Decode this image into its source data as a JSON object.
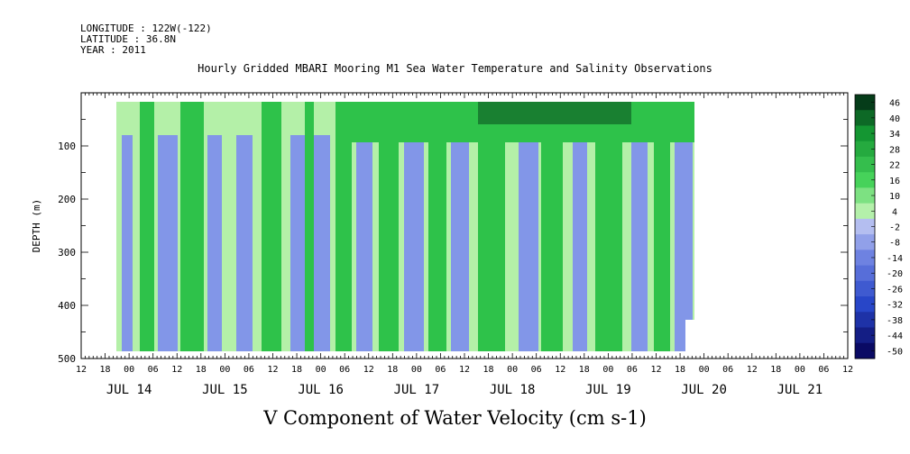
{
  "header": {
    "longitude": "LONGITUDE : 122W(-122)",
    "latitude": "LATITUDE : 36.8N",
    "year": "YEAR : 2011"
  },
  "chart_data": {
    "type": "heatmap",
    "title": "Hourly Gridded MBARI Mooring M1 Sea Water Temperature and Salinity Observations",
    "xlabel": "V Component of Water Velocity (cm s-1)",
    "ylabel": "DEPTH (m)",
    "y_ticks": [
      100,
      200,
      300,
      400,
      500
    ],
    "ylim": [
      500,
      0
    ],
    "x_hour_ticks": [
      "12",
      "18",
      "00",
      "06",
      "12",
      "18",
      "00",
      "06",
      "12",
      "18",
      "00",
      "06",
      "12",
      "18",
      "00",
      "06",
      "12",
      "18",
      "00",
      "06",
      "12",
      "18",
      "00",
      "06",
      "12",
      "18",
      "00",
      "06",
      "12",
      "18",
      "00",
      "06",
      "12"
    ],
    "x_date_labels": [
      "JUL 14",
      "JUL 15",
      "JUL 16",
      "JUL 17",
      "JUL 18",
      "JUL 19",
      "JUL 20",
      "JUL 21"
    ],
    "colorbar_labels": [
      "46",
      "40",
      "34",
      "28",
      "22",
      "16",
      "10",
      "4",
      "-2",
      "-8",
      "-14",
      "-20",
      "-26",
      "-32",
      "-38",
      "-44",
      "-50"
    ],
    "colors": {
      "frame": "#000000",
      "strong_positive": "#0a4a1e",
      "positive": "#2ec24a",
      "weak": "#b4f0a8",
      "negative": "#8296e8",
      "strong_negative": "#101a6e"
    }
  }
}
